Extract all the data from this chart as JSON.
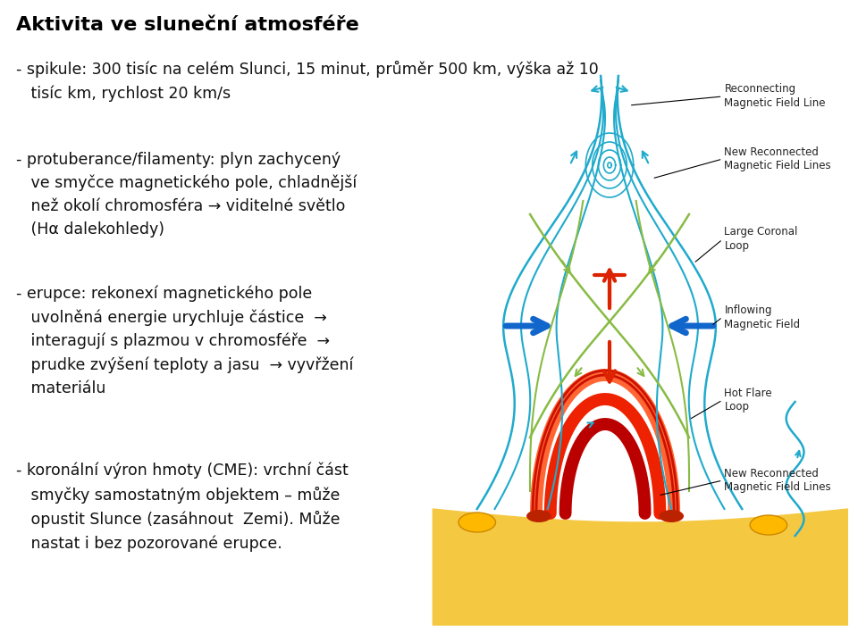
{
  "title": "Aktivita ve sluneční atmosféře",
  "bg_color": "#ffffff",
  "title_color": "#000000",
  "title_fontsize": 16,
  "body_fontsize": 12.5,
  "body_color": "#111111",
  "line1": "- spikule: 300 tisíc na celém Slunci, 15 minut, průměr 500 km, výška až 10\n   tisíc km, rychlost 20 km/s",
  "line2": "- protuberance/filamenty: plyn zachycený\n   ve smyčce magnetického pole, chladnější\n   než okolí chromosféra → viditelné světlo\n   (Hα dalekohledy)",
  "line3": "- erupce: rekonexí magnetického pole\n   uvolněná energie urychluje částice  →\n   interagují s plazmou v chromosféře  →\n   prudke zvýšení teploty a jasu  → vyvřžení\n   materiálu",
  "line4": "- koronální výron hmoty (CME): vrchní část\n   smyčky samostatným objektem – může\n   opustit Slunce (zasáhnout  Zemi). Může\n   nastat i bez pozorované erupce.",
  "cyan": "#20AACC",
  "green": "#88BB44",
  "red_arrow": "#DD2200",
  "red_arch": "#CC1100",
  "blue_arrow": "#1166CC",
  "sand_light": "#F5C842",
  "sand_dark": "#E8A820",
  "footpoint_yellow": "#FFB800",
  "label_fs": 8.5,
  "label_color": "#222222"
}
